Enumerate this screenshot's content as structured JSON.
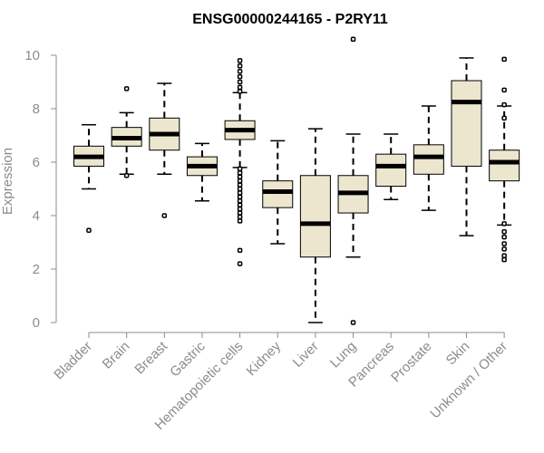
{
  "chart_data": {
    "type": "box",
    "title": "ENSG00000244165 - P2RY11",
    "xlabel": "",
    "ylabel": "Expression",
    "ylim": [
      0,
      10
    ],
    "yticks": [
      0,
      2,
      4,
      6,
      8,
      10
    ],
    "box_fill": "#ede6cf",
    "categories": [
      "Bladder",
      "Brain",
      "Breast",
      "Gastric",
      "Hematopoietic cells",
      "Kidney",
      "Liver",
      "Lung",
      "Pancreas",
      "Prostate",
      "Skin",
      "Unknown / Other"
    ],
    "boxes": [
      {
        "category": "Bladder",
        "whislo": 5.0,
        "q1": 5.85,
        "med": 6.2,
        "q3": 6.6,
        "whishi": 7.4,
        "fliers": [
          3.45
        ]
      },
      {
        "category": "Brain",
        "whislo": 5.55,
        "q1": 6.6,
        "med": 6.9,
        "q3": 7.3,
        "whishi": 7.85,
        "fliers": [
          8.75,
          5.5
        ]
      },
      {
        "category": "Breast",
        "whislo": 5.55,
        "q1": 6.45,
        "med": 7.05,
        "q3": 7.65,
        "whishi": 8.95,
        "fliers": [
          4.0
        ]
      },
      {
        "category": "Gastric",
        "whislo": 4.55,
        "q1": 5.5,
        "med": 5.85,
        "q3": 6.2,
        "whishi": 6.7,
        "fliers": []
      },
      {
        "category": "Hematopoietic cells",
        "whislo": 5.8,
        "q1": 6.85,
        "med": 7.2,
        "q3": 7.55,
        "whishi": 8.6,
        "fliers": [
          9.8,
          9.6,
          9.4,
          9.2,
          9.0,
          8.8,
          8.65,
          5.75,
          5.6,
          5.45,
          5.3,
          5.15,
          5.0,
          4.85,
          4.7,
          4.55,
          4.4,
          4.25,
          4.1,
          3.95,
          3.8,
          2.7,
          2.2
        ]
      },
      {
        "category": "Kidney",
        "whislo": 2.95,
        "q1": 4.3,
        "med": 4.9,
        "q3": 5.3,
        "whishi": 6.8,
        "fliers": []
      },
      {
        "category": "Liver",
        "whislo": 0.0,
        "q1": 2.45,
        "med": 3.7,
        "q3": 5.5,
        "whishi": 7.25,
        "fliers": []
      },
      {
        "category": "Lung",
        "whislo": 2.45,
        "q1": 4.1,
        "med": 4.85,
        "q3": 5.5,
        "whishi": 7.05,
        "fliers": [
          10.6,
          0.0
        ]
      },
      {
        "category": "Pancreas",
        "whislo": 4.6,
        "q1": 5.1,
        "med": 5.85,
        "q3": 6.3,
        "whishi": 7.05,
        "fliers": []
      },
      {
        "category": "Prostate",
        "whislo": 4.2,
        "q1": 5.55,
        "med": 6.2,
        "q3": 6.65,
        "whishi": 8.1,
        "fliers": []
      },
      {
        "category": "Skin",
        "whislo": 3.25,
        "q1": 5.85,
        "med": 8.25,
        "q3": 9.05,
        "whishi": 9.9,
        "fliers": []
      },
      {
        "category": "Unknown / Other",
        "whislo": 3.65,
        "q1": 5.3,
        "med": 6.0,
        "q3": 6.45,
        "whishi": 8.1,
        "fliers": [
          9.85,
          8.7,
          8.15,
          7.65,
          3.7,
          3.4,
          3.2,
          2.95,
          2.75,
          2.5,
          2.35
        ]
      }
    ]
  }
}
